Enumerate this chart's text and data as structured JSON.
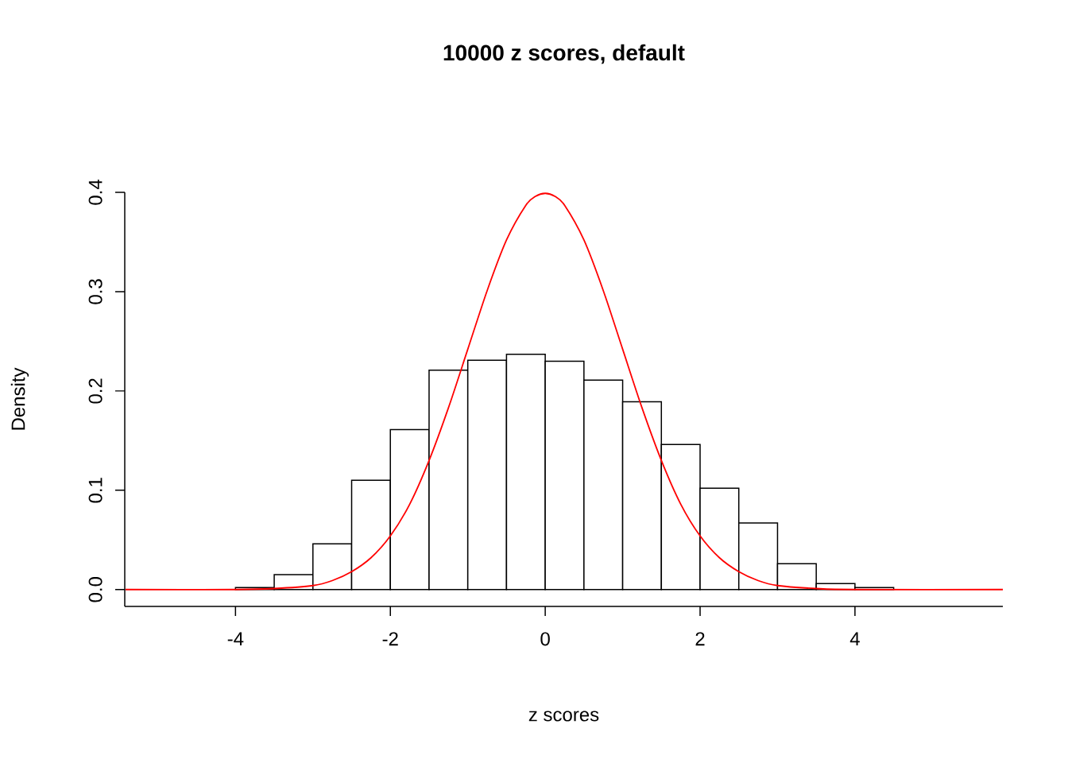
{
  "chart_data": {
    "type": "histogram",
    "title": "10000 z scores, default",
    "xlabel": "z scores",
    "ylabel": "Density",
    "xlim": [
      -5.43,
      5.91
    ],
    "ylim": [
      -0.017,
      0.4
    ],
    "xticks": [
      -4,
      -2,
      0,
      2,
      4
    ],
    "yticks": [
      {
        "value": 0,
        "label": "0.0"
      },
      {
        "value": 0.1,
        "label": "0.1"
      },
      {
        "value": 0.2,
        "label": "0.2"
      },
      {
        "value": 0.3,
        "label": "0.3"
      },
      {
        "value": 0.4,
        "label": "0.4"
      }
    ],
    "series": [
      {
        "type": "histogram",
        "color": "#ffffff",
        "bins": [
          -5,
          -4.5,
          -4,
          -3.5,
          -3,
          -2.5,
          -2,
          -1.5,
          -1,
          -0.5,
          0,
          0.5,
          1,
          1.5,
          2,
          2.5,
          3,
          3.5,
          4,
          4.5,
          5,
          5.5
        ],
        "values": [
          0,
          0,
          0.002,
          0.015,
          0.046,
          0.11,
          0.161,
          0.221,
          0.231,
          0.237,
          0.23,
          0.211,
          0.189,
          0.146,
          0.102,
          0.067,
          0.026,
          0.006,
          0.002,
          0,
          0
        ]
      },
      {
        "type": "line",
        "color": "#ff0000",
        "x": [
          -5.42,
          -4,
          -3.5,
          -3,
          -2.75,
          -2.5,
          -2.25,
          -2,
          -1.75,
          -1.5,
          -1.25,
          -1,
          -0.75,
          -0.5,
          -0.25,
          -0.125,
          0,
          0.125,
          0.25,
          0.5,
          0.75,
          1,
          1.25,
          1.5,
          1.75,
          2,
          2.25,
          2.5,
          2.75,
          3,
          3.5,
          4,
          5.91
        ],
        "values": [
          0,
          0,
          0.001,
          0.004,
          0.009,
          0.018,
          0.032,
          0.054,
          0.086,
          0.13,
          0.183,
          0.242,
          0.301,
          0.352,
          0.387,
          0.396,
          0.399,
          0.396,
          0.387,
          0.352,
          0.301,
          0.242,
          0.183,
          0.13,
          0.086,
          0.054,
          0.032,
          0.018,
          0.009,
          0.004,
          0.001,
          0,
          0
        ]
      }
    ]
  }
}
